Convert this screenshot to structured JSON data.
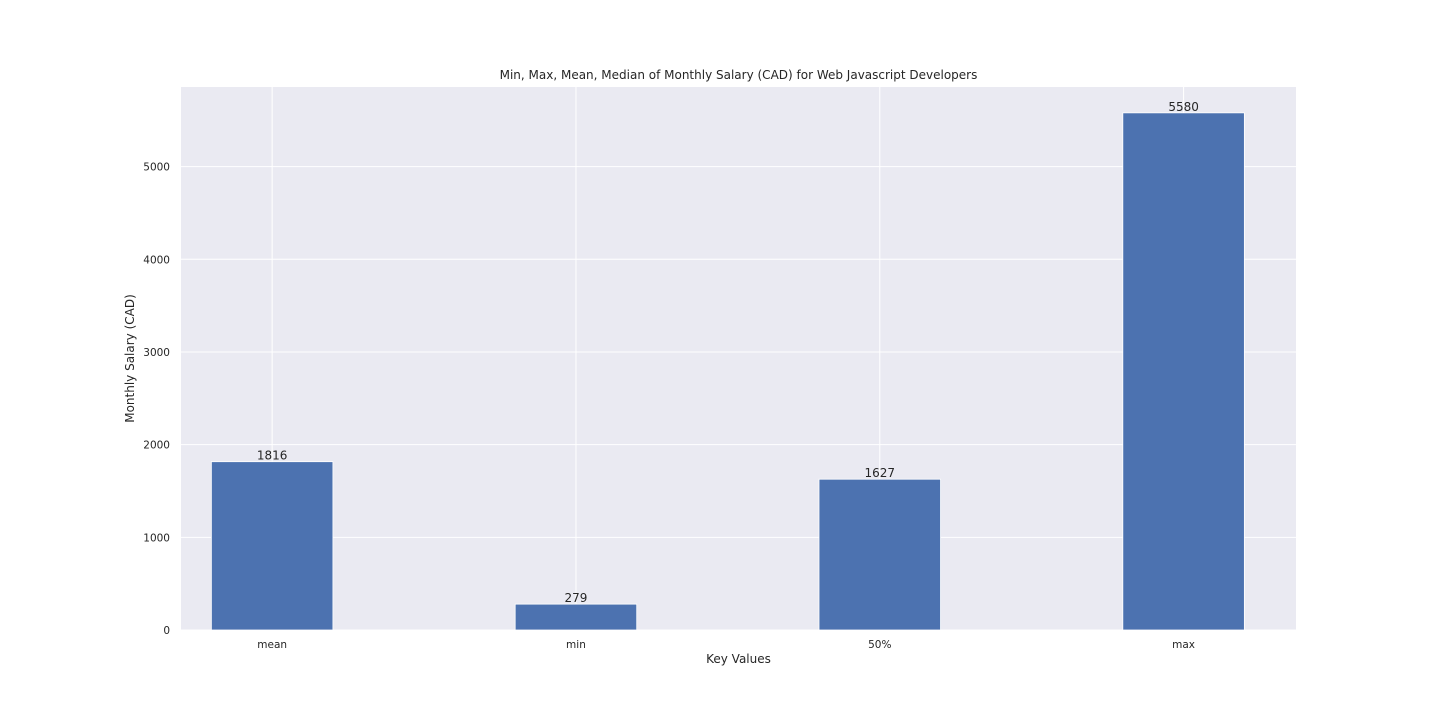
{
  "chart_data": {
    "type": "bar",
    "title": "Min, Max, Mean, Median of Monthly Salary (CAD) for Web Javascript Developers",
    "xlabel": "Key Values",
    "ylabel": "Monthly Salary (CAD)",
    "categories": [
      "mean",
      "min",
      "50%",
      "max"
    ],
    "values": [
      1816,
      279,
      1627,
      5580
    ],
    "data_labels": [
      "1816",
      "279",
      "1627",
      "5580"
    ],
    "ylim": [
      0,
      5859
    ],
    "yticks": [
      0,
      1000,
      2000,
      3000,
      4000,
      5000
    ],
    "ytick_labels": [
      "0",
      "1000",
      "2000",
      "3000",
      "4000",
      "5000"
    ],
    "grid": true,
    "colors": {
      "bar": "#4c72b0",
      "background": "#eaeaf2",
      "grid": "#ffffff",
      "text": "#262626"
    }
  }
}
